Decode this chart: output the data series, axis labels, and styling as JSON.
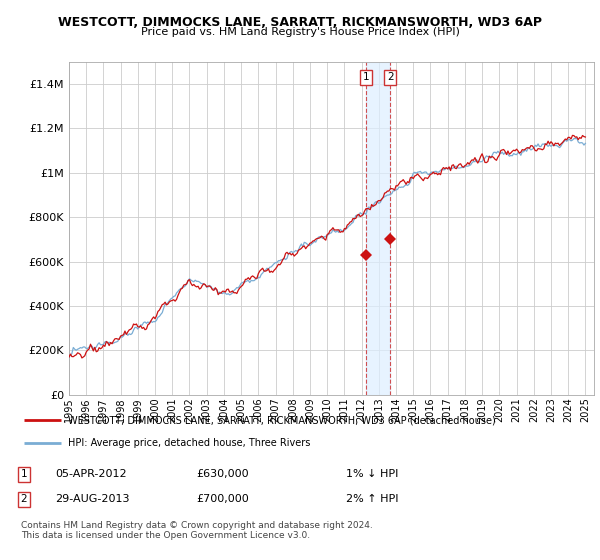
{
  "title": "WESTCOTT, DIMMOCKS LANE, SARRATT, RICKMANSWORTH, WD3 6AP",
  "subtitle": "Price paid vs. HM Land Registry's House Price Index (HPI)",
  "ylim": [
    0,
    1500000
  ],
  "yticks": [
    0,
    200000,
    400000,
    600000,
    800000,
    1000000,
    1200000,
    1400000
  ],
  "ytick_labels": [
    "£0",
    "£200K",
    "£400K",
    "£600K",
    "£800K",
    "£1M",
    "£1.2M",
    "£1.4M"
  ],
  "x_start_year": 1995,
  "x_end_year": 2025,
  "hpi_color": "#7aadd4",
  "price_color": "#cc1111",
  "sale1_year": 2012.27,
  "sale1_price": 630000,
  "sale2_year": 2013.66,
  "sale2_price": 700000,
  "legend_label1": "WESTCOTT, DIMMOCKS LANE, SARRATT, RICKMANSWORTH, WD3 6AP (detached house)",
  "legend_label2": "HPI: Average price, detached house, Three Rivers",
  "ann1_date": "05-APR-2012",
  "ann1_price": "£630,000",
  "ann1_hpi": "1% ↓ HPI",
  "ann2_date": "29-AUG-2013",
  "ann2_price": "£700,000",
  "ann2_hpi": "2% ↑ HPI",
  "footer": "Contains HM Land Registry data © Crown copyright and database right 2024.\nThis data is licensed under the Open Government Licence v3.0.",
  "background_color": "#ffffff",
  "grid_color": "#cccccc",
  "band_color": "#ddeeff"
}
